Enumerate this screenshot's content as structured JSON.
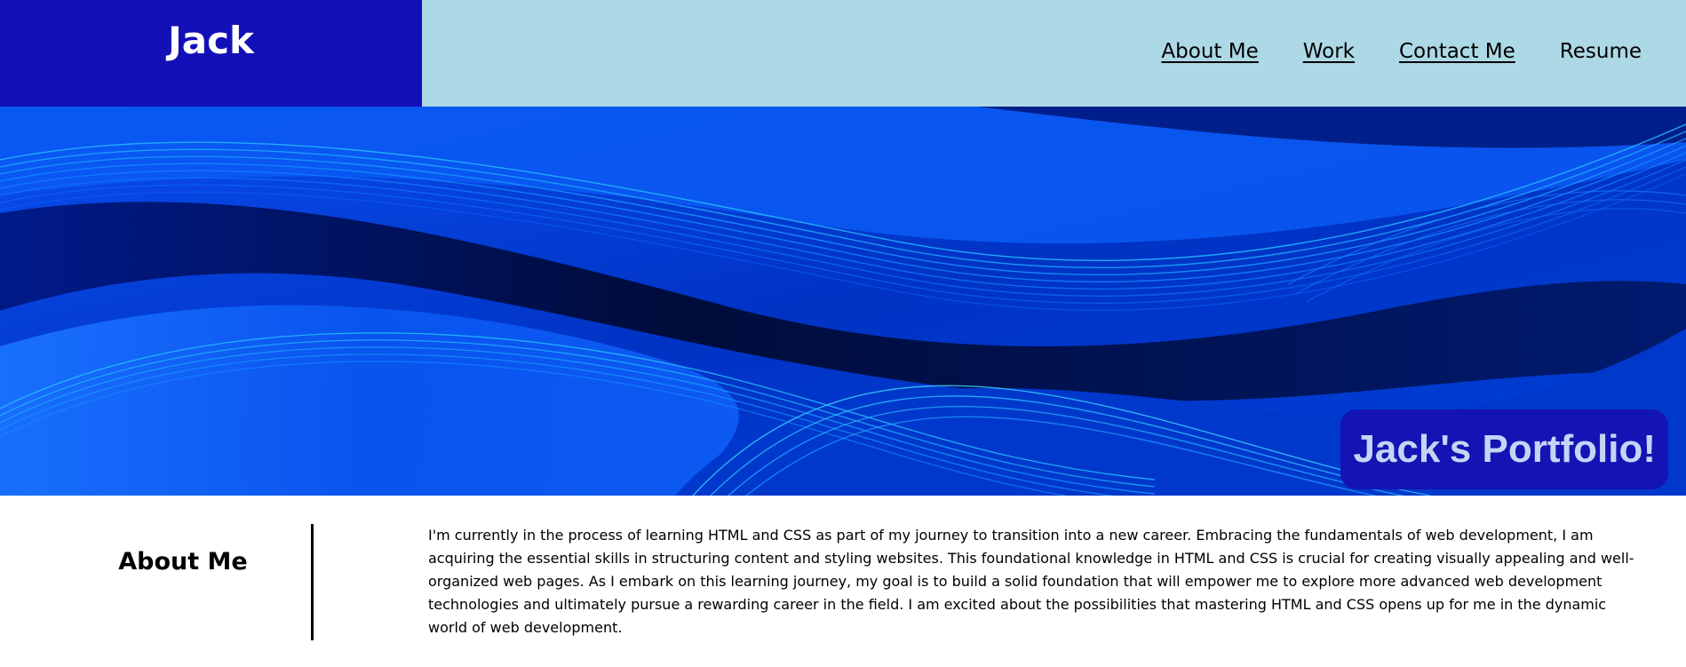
{
  "header": {
    "logo": "Jack",
    "nav": [
      {
        "label": "About Me"
      },
      {
        "label": "Work"
      },
      {
        "label": "Contact Me"
      },
      {
        "label": "Resume"
      }
    ]
  },
  "hero": {
    "title": "Jack's Portfolio!"
  },
  "about": {
    "heading": "About Me",
    "text": "I'm currently in the process of learning HTML and CSS as part of my journey to transition into a new career. Embracing the fundamentals of web development, I am acquiring the essential skills in structuring content and styling websites. This foundational knowledge in HTML and CSS is crucial for creating visually appealing and well-organized web pages. As I embark on this learning journey, my goal is to build a solid foundation that will empower me to explore more advanced web development technologies and ultimately pursue a rewarding career in the field. I am excited about the possibilities that mastering HTML and CSS opens up for me in the dynamic world of web development."
  },
  "colors": {
    "header_bg": "#add8e6",
    "logo_bg": "#1410b8",
    "hero_title_bg": "#1414b4",
    "hero_title_text": "#c5d4f5"
  }
}
